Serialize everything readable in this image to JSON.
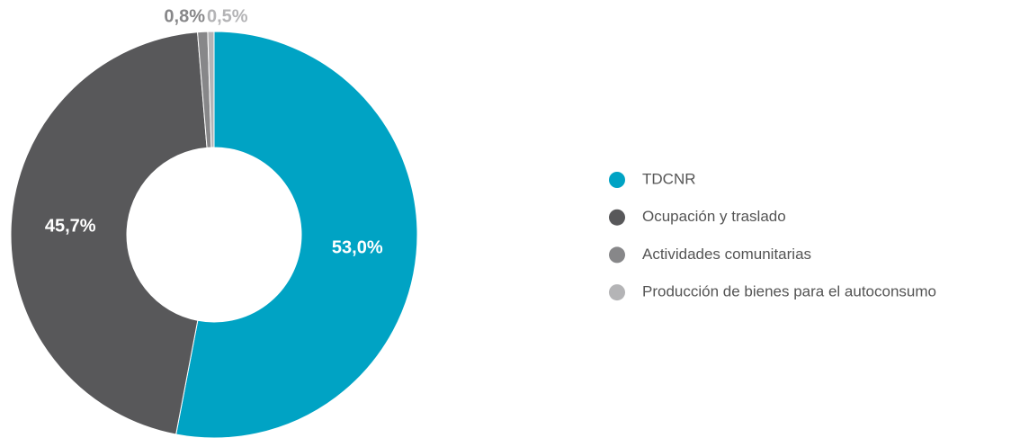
{
  "chart_data": {
    "type": "donut",
    "categories": [
      "TDCNR",
      "Ocupación y traslado",
      "Actividades comunitarias",
      "Producción de bienes para el autoconsumo"
    ],
    "values": [
      53.0,
      45.7,
      0.8,
      0.5
    ],
    "value_labels": [
      "53,0%",
      "45,7%",
      "0,8%",
      "0,5%"
    ],
    "colors": [
      "#00a3c4",
      "#58585a",
      "#878789",
      "#b4b4b6"
    ],
    "legend": "right"
  }
}
